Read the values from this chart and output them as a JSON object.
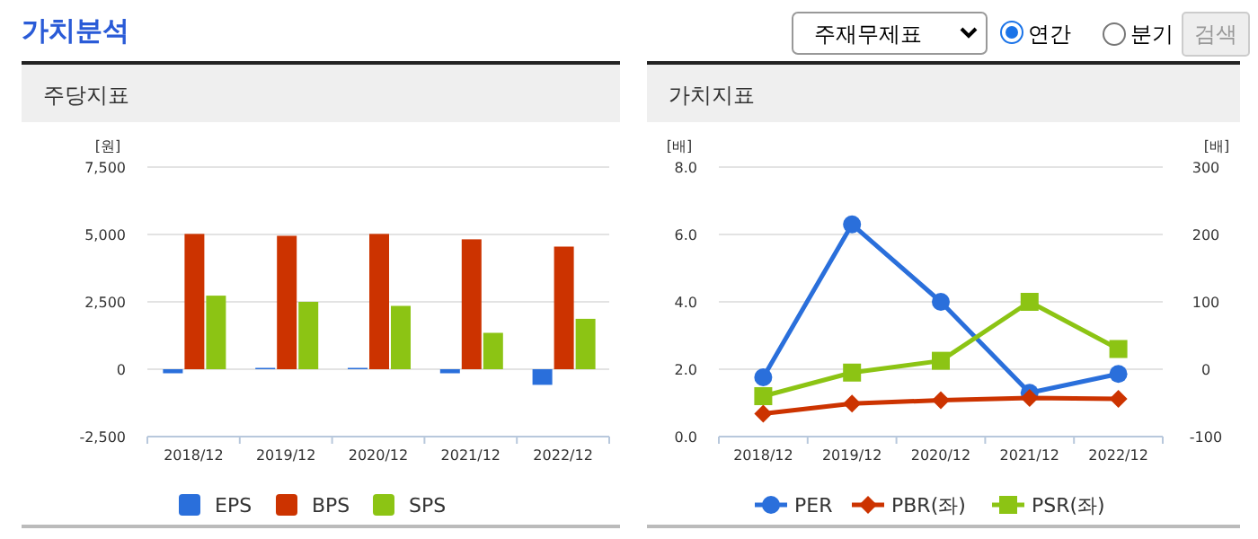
{
  "chart_data": [
    {
      "type": "other",
      "title": "가치분석",
      "annotations": [
        "주재무제표",
        "연간",
        "분기",
        "검색"
      ]
    },
    {
      "type": "bar",
      "title": "주당지표",
      "ylabel": "[원]",
      "categories": [
        "2018/12",
        "2019/12",
        "2020/12",
        "2021/12",
        "2022/12"
      ],
      "series": [
        {
          "name": "EPS",
          "color": "#2a6fdb",
          "values": [
            -150,
            50,
            50,
            -150,
            -580
          ]
        },
        {
          "name": "BPS",
          "color": "#cc3300",
          "values": [
            5020,
            4950,
            5020,
            4820,
            4550
          ]
        },
        {
          "name": "SPS",
          "color": "#8cc414",
          "values": [
            2730,
            2500,
            2350,
            1350,
            1870
          ]
        }
      ],
      "ylim": [
        -2500,
        7500
      ],
      "yticks": [
        {
          "value": -2500,
          "label": "-2,500"
        },
        0,
        {
          "value": 2500,
          "label": "2,500"
        },
        {
          "value": 5000,
          "label": "5,000"
        },
        {
          "value": 7500,
          "label": "7,500"
        }
      ],
      "grid": "y",
      "legend": "bottom"
    },
    {
      "type": "line",
      "title": "가치지표",
      "ylabel": "[배]",
      "y2label": "[배]",
      "categories": [
        "2018/12",
        "2019/12",
        "2020/12",
        "2021/12",
        "2022/12"
      ],
      "series": [
        {
          "name": "PER",
          "color": "#2a6fdb",
          "axis": "y2",
          "marker": "circle",
          "values": [
            -12,
            215,
            100,
            -35,
            -7
          ]
        },
        {
          "name": "PBR(좌)",
          "color": "#cc3300",
          "marker": "diamond",
          "values": [
            0.68,
            0.98,
            1.08,
            1.15,
            1.12
          ]
        },
        {
          "name": "PSR(좌)",
          "color": "#8cc414",
          "marker": "square",
          "values": [
            1.2,
            1.9,
            2.25,
            4.0,
            2.6
          ]
        }
      ],
      "ylim": [
        0,
        8
      ],
      "yticks": [
        {
          "value": 0,
          "label": "0.0"
        },
        {
          "value": 2,
          "label": "2.0"
        },
        {
          "value": 4,
          "label": "4.0"
        },
        {
          "value": 6,
          "label": "6.0"
        },
        {
          "value": 8,
          "label": "8.0"
        }
      ],
      "y2lim": [
        -100,
        300
      ],
      "y2ticks": [
        -100,
        0,
        100,
        200,
        300
      ],
      "grid": "y",
      "legend": "bottom"
    }
  ]
}
